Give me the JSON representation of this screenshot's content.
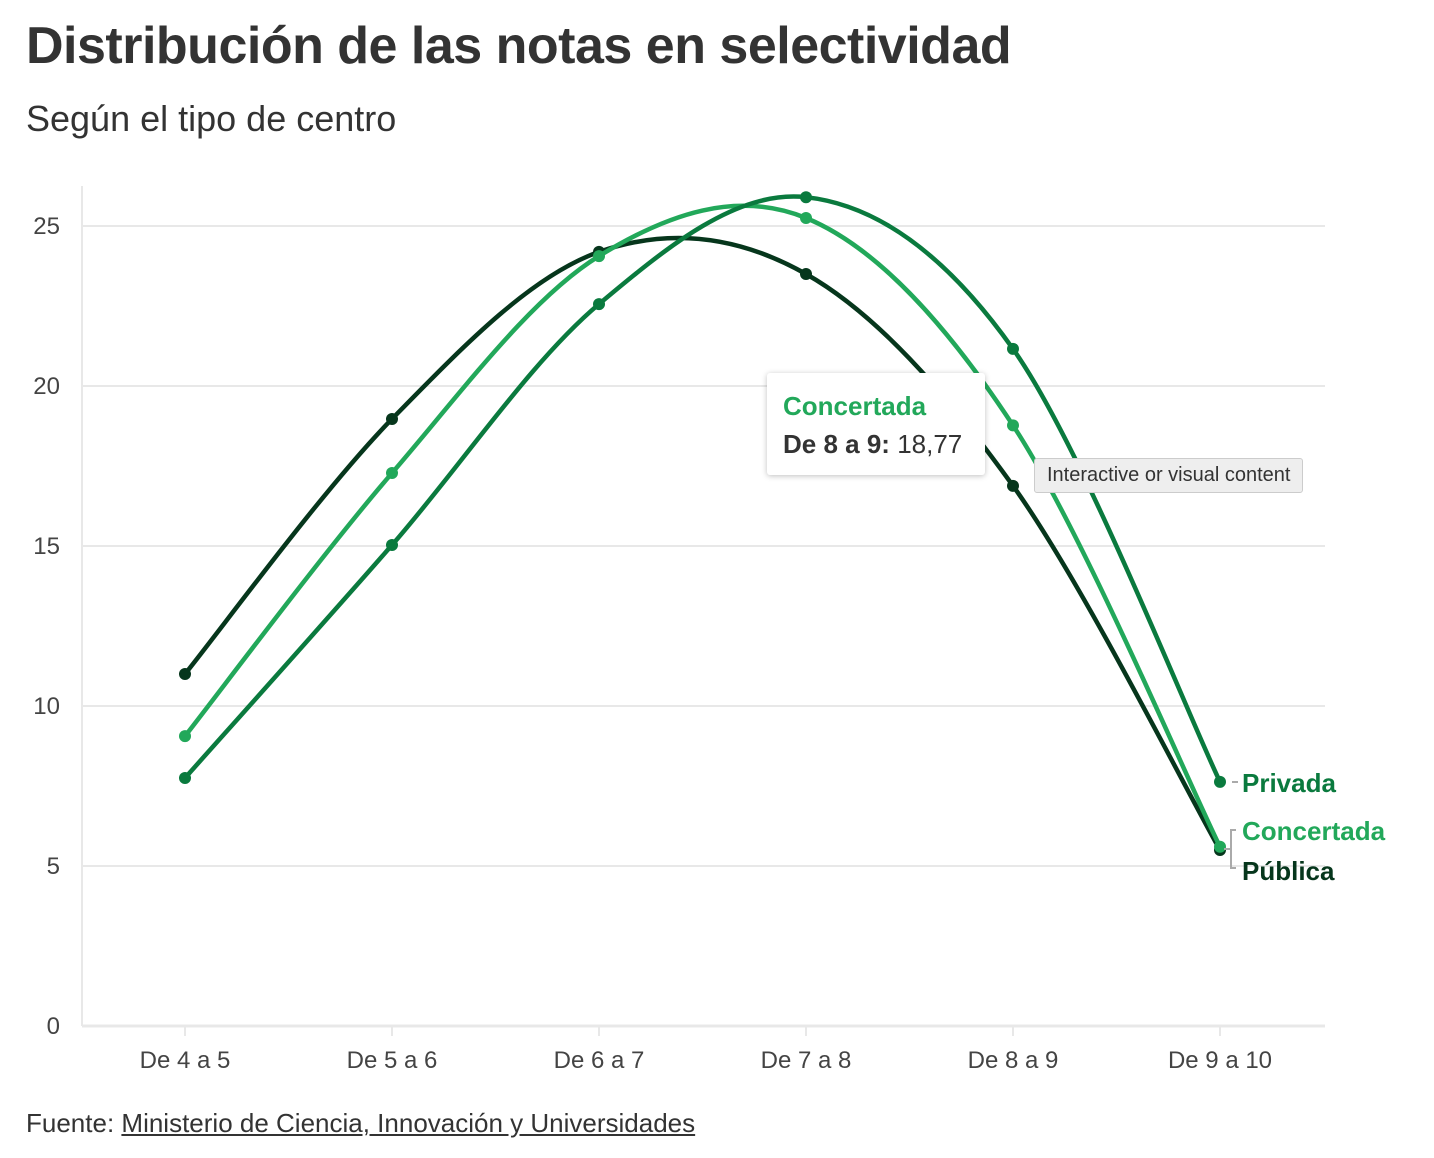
{
  "header": {
    "title": "Distribución de las notas en selectividad",
    "subtitle": "Según el tipo de centro"
  },
  "footer": {
    "source_label": "Fuente:",
    "source_link": "Ministerio de Ciencia, Innovación y Universidades"
  },
  "tooltip": {
    "series": "Concertada",
    "category": "De 8 a 9:",
    "value": "18,77"
  },
  "overlay_label": "Interactive or visual content",
  "chart_data": {
    "type": "line",
    "title": "Distribución de las notas en selectividad",
    "subtitle": "Según el tipo de centro",
    "xlabel": "",
    "ylabel": "",
    "categories": [
      "De 4 a 5",
      "De 5 a 6",
      "De 6 a 7",
      "De 7 a 8",
      "De 8 a 9",
      "De 9 a 10"
    ],
    "ylim": [
      0,
      26
    ],
    "yticks": [
      "0",
      "5",
      "10",
      "15",
      "20",
      "25"
    ],
    "grid": true,
    "legend": "direct labels at line ends",
    "series": [
      {
        "name": "Pública",
        "color": "#06361c",
        "values": [
          11.0,
          18.97,
          24.19,
          23.5,
          16.88,
          5.5
        ]
      },
      {
        "name": "Concertada",
        "color": "#22a85a",
        "values": [
          9.06,
          17.28,
          24.06,
          25.25,
          18.77,
          5.6
        ]
      },
      {
        "name": "Privada",
        "color": "#0a7a3e",
        "values": [
          7.75,
          15.03,
          22.56,
          25.9,
          21.16,
          7.63
        ]
      }
    ]
  }
}
